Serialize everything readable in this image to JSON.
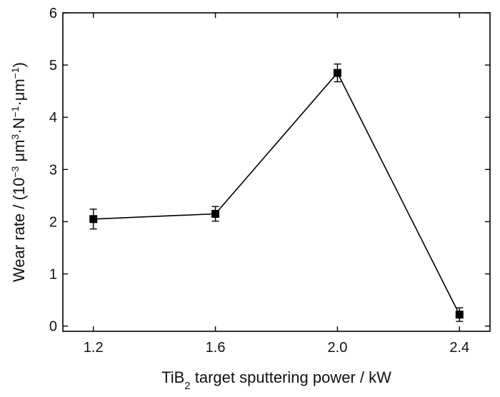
{
  "chart_data": {
    "type": "line",
    "title": "",
    "xlabel": {
      "prefix": "TiB",
      "subscript": "2",
      "suffix": " target sputtering power / kW"
    },
    "ylabel": {
      "parts": [
        {
          "text": "Wear rate / (10",
          "baseline": "normal"
        },
        {
          "text": "−3",
          "baseline": "super"
        },
        {
          "text": " μm",
          "baseline": "normal"
        },
        {
          "text": "3",
          "baseline": "super"
        },
        {
          "text": "·N",
          "baseline": "normal"
        },
        {
          "text": "−1",
          "baseline": "super"
        },
        {
          "text": "·μm",
          "baseline": "normal"
        },
        {
          "text": "−1",
          "baseline": "super"
        },
        {
          "text": ")",
          "baseline": "normal"
        }
      ]
    },
    "x_ticks": [
      "1.2",
      "1.6",
      "2.0",
      "2.4"
    ],
    "y_ticks": [
      "0",
      "1",
      "2",
      "3",
      "4",
      "5",
      "6"
    ],
    "xlim": [
      1.1,
      2.5
    ],
    "ylim": [
      -0.1,
      6
    ],
    "grid": false,
    "series": [
      {
        "x": [
          1.2,
          1.6,
          2.0,
          2.4
        ],
        "values": [
          2.05,
          2.15,
          4.85,
          0.22
        ],
        "errors": [
          0.19,
          0.14,
          0.17,
          0.13
        ],
        "marker": "square",
        "color": "#000000"
      }
    ]
  }
}
